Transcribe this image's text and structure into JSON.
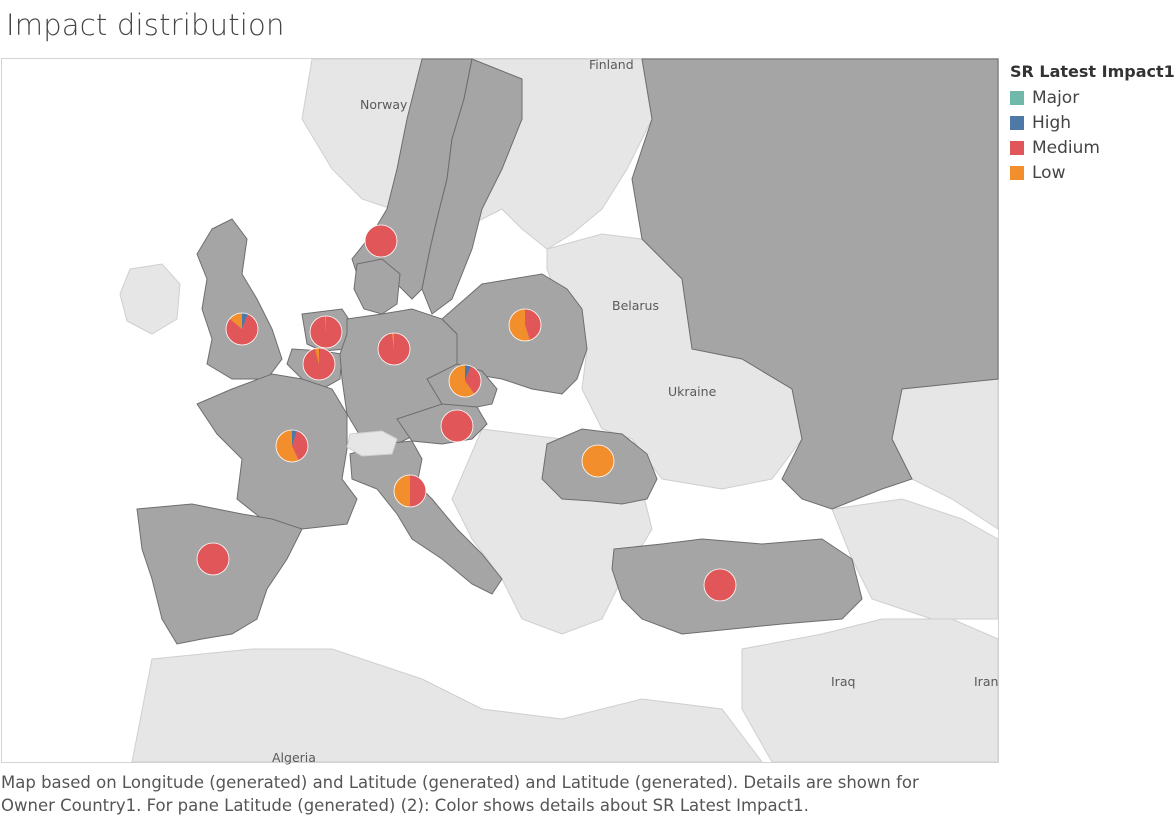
{
  "title": "Impact distribution",
  "legend": {
    "title": "SR Latest Impact1",
    "items": [
      {
        "label": "Major",
        "color": "#6fb8aa"
      },
      {
        "label": "High",
        "color": "#4e79a7"
      },
      {
        "label": "Medium",
        "color": "#e15759"
      },
      {
        "label": "Low",
        "color": "#f28e2b"
      }
    ]
  },
  "map_labels": {
    "finland": "Finland",
    "norway": "Norway",
    "belarus": "Belarus",
    "ukraine": "Ukraine",
    "iraq": "Iraq",
    "iran": "Iran",
    "algeria": "Algeria"
  },
  "caption": {
    "line1": "Map based on Longitude (generated) and Latitude (generated) and Latitude (generated).  Details are shown for",
    "line2": "Owner Country1.  For pane Latitude (generated) (2):  Color shows details about SR Latest Impact1."
  },
  "pies": [
    {
      "name": "pie-denmark",
      "slices": [
        0,
        0,
        1,
        0
      ]
    },
    {
      "name": "pie-united-kingdom",
      "slices": [
        0,
        0.06,
        0.8,
        0.14
      ]
    },
    {
      "name": "pie-netherlands",
      "slices": [
        0,
        0,
        0.99,
        0.01
      ]
    },
    {
      "name": "pie-belgium",
      "slices": [
        0,
        0.01,
        0.95,
        0.04
      ]
    },
    {
      "name": "pie-germany",
      "slices": [
        0,
        0,
        0.98,
        0.02
      ]
    },
    {
      "name": "pie-poland",
      "slices": [
        0,
        0,
        0.45,
        0.55
      ]
    },
    {
      "name": "pie-czech-republic",
      "slices": [
        0,
        0.06,
        0.34,
        0.6
      ]
    },
    {
      "name": "pie-austria",
      "slices": [
        0,
        0,
        1,
        0
      ]
    },
    {
      "name": "pie-france",
      "slices": [
        0,
        0.05,
        0.38,
        0.57
      ]
    },
    {
      "name": "pie-italy",
      "slices": [
        0,
        0,
        0.5,
        0.5
      ]
    },
    {
      "name": "pie-romania",
      "slices": [
        0,
        0,
        0,
        1
      ]
    },
    {
      "name": "pie-spain",
      "slices": [
        0,
        0,
        1,
        0
      ]
    },
    {
      "name": "pie-turkey",
      "slices": [
        0,
        0,
        1,
        0
      ]
    }
  ]
}
